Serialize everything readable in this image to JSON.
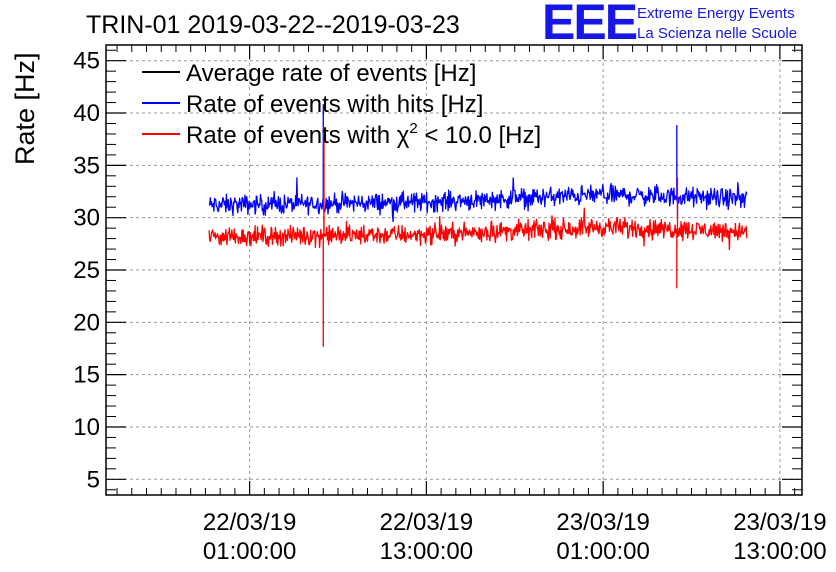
{
  "chart_data": {
    "type": "line",
    "title": "TRIN-01 2019-03-22--2019-03-23",
    "ylabel": "Rate [Hz]",
    "xlabel": "",
    "ylim": [
      3.5,
      46.5
    ],
    "xlim_hours": [
      -9.75,
      37.5
    ],
    "yticks": [
      5,
      10,
      15,
      20,
      25,
      30,
      35,
      40,
      45
    ],
    "xticks": [
      {
        "hour": 0,
        "line1": "22/03/19",
        "line2": "01:00:00"
      },
      {
        "hour": 12,
        "line1": "22/03/19",
        "line2": "13:00:00"
      },
      {
        "hour": 24,
        "line1": "23/03/19",
        "line2": "01:00:00"
      },
      {
        "hour": 36,
        "line1": "23/03/19",
        "line2": "13:00:00"
      }
    ],
    "grid": true,
    "legend_position": "top-left",
    "x_range_hours": [
      -2.75,
      33.75
    ],
    "series": [
      {
        "name": "Average rate of events [Hz]",
        "legend_main": "Average rate of events [Hz]",
        "color": "#000000",
        "values": []
      },
      {
        "name": "Rate of events with hits [Hz]",
        "legend_main": "Rate of events with hits [Hz]",
        "color": "#0000ff",
        "base_trend": [
          {
            "hour": -2.75,
            "value": 31.2
          },
          {
            "hour": 12,
            "value": 31.5
          },
          {
            "hour": 24,
            "value": 32.2
          },
          {
            "hour": 33.75,
            "value": 31.8
          }
        ],
        "noise": 0.9,
        "spikes": [
          {
            "hour": 5,
            "value": 40.8
          },
          {
            "hour": 29,
            "value": 38.8
          },
          {
            "hour": 29.05,
            "value": 30.2
          }
        ]
      },
      {
        "name": "Rate of events with chi2 < 10.0 [Hz]",
        "legend_main": "Rate of events with ",
        "legend_chi": "χ",
        "legend_sup": "2",
        "legend_rest": " < 10.0 [Hz]",
        "color": "#ff0000",
        "base_trend": [
          {
            "hour": -2.75,
            "value": 28.2
          },
          {
            "hour": 12,
            "value": 28.4
          },
          {
            "hour": 24,
            "value": 29.1
          },
          {
            "hour": 33.75,
            "value": 28.7
          }
        ],
        "noise": 0.9,
        "spikes": [
          {
            "hour": 5,
            "value": 17.7
          },
          {
            "hour": 5.05,
            "value": 38.6
          },
          {
            "hour": 29,
            "value": 23.3
          },
          {
            "hour": 29.05,
            "value": 33.8
          }
        ]
      }
    ]
  },
  "logo": {
    "mark": "EEE",
    "line1": "Extreme Energy Events",
    "line2": "La Scienza nelle Scuole"
  }
}
